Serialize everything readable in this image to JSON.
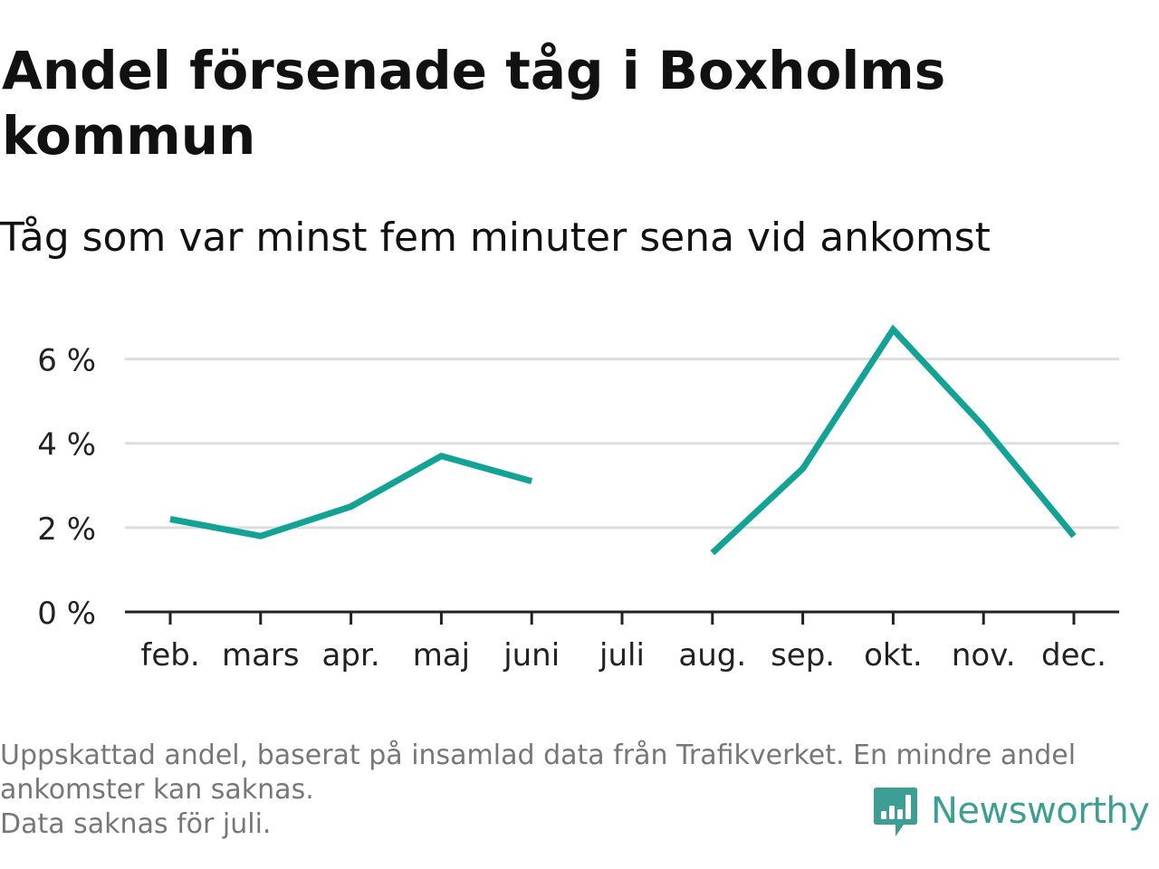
{
  "header": {
    "title": "Andel försenade tåg i Boxholms kommun",
    "subtitle": "Tåg som var minst fem minuter sena vid ankomst"
  },
  "footnote": {
    "lines": [
      "Uppskattad andel, baserat på insamlad data från Trafikverket. En mindre andel",
      "ankomster kan saknas.",
      "Data saknas för juli."
    ]
  },
  "brand": {
    "name": "Newsworthy",
    "icon": "newsworthy-logo-icon",
    "color": "#3d9f94"
  },
  "chart_data": {
    "type": "line",
    "title": "Andel försenade tåg i Boxholms kommun",
    "subtitle": "Tåg som var minst fem minuter sena vid ankomst",
    "xlabel": "",
    "ylabel": "",
    "categories": [
      "feb.",
      "mars",
      "apr.",
      "maj",
      "juni",
      "juli",
      "aug.",
      "sep.",
      "okt.",
      "nov.",
      "dec."
    ],
    "series": [
      {
        "values": [
          2.2,
          1.8,
          2.5,
          3.7,
          3.1,
          null,
          1.4,
          3.4,
          6.7,
          4.4,
          1.8
        ]
      }
    ],
    "y_ticks": [
      0,
      2,
      4,
      6
    ],
    "y_tick_labels": [
      "0 %",
      "2 %",
      "4 %",
      "6 %"
    ],
    "ylim": [
      0,
      7
    ],
    "grid": true,
    "legend": "none",
    "line_color": "#13a396",
    "grid_color": "#dddddd",
    "axis_color": "#222222"
  }
}
